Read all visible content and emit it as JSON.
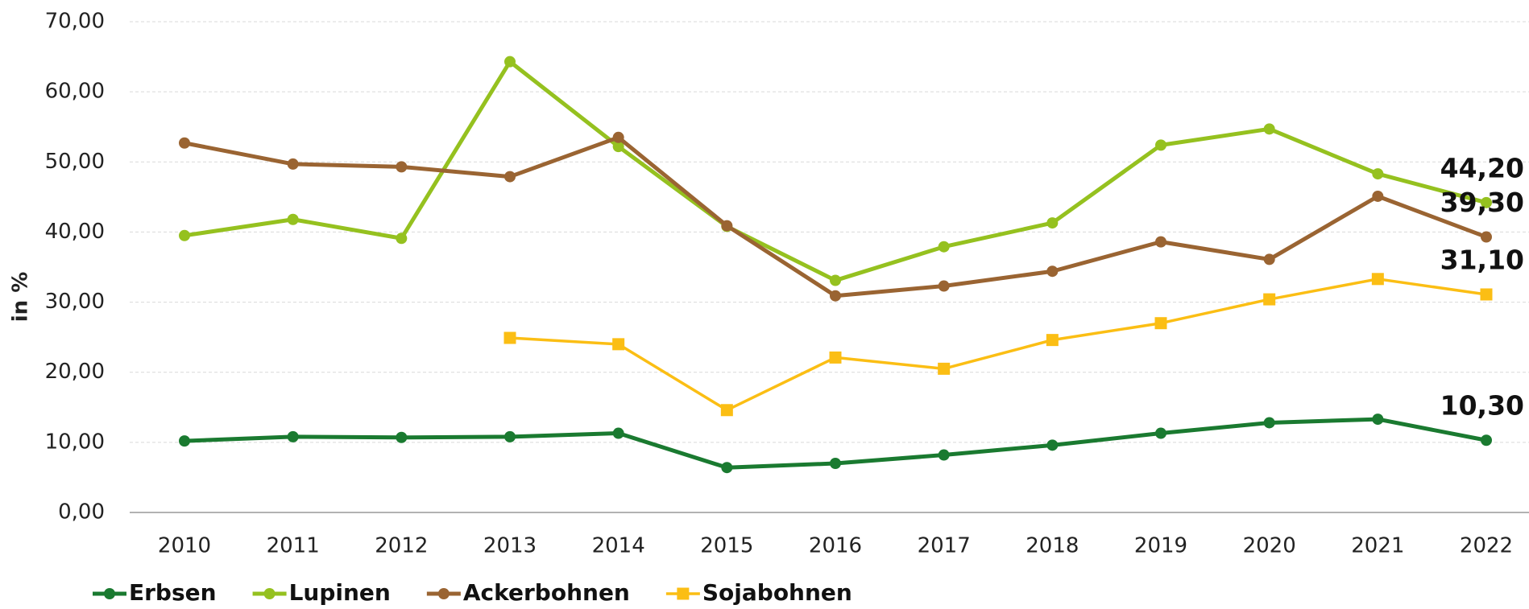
{
  "chart_data": {
    "type": "line",
    "y_label": "in %",
    "categories": [
      "2010",
      "2011",
      "2012",
      "2013",
      "2014",
      "2015",
      "2016",
      "2017",
      "2018",
      "2019",
      "2020",
      "2021",
      "2022"
    ],
    "ylim": [
      0,
      70
    ],
    "yticks": [
      {
        "value": 0,
        "label": "0,00"
      },
      {
        "value": 10,
        "label": "10,00"
      },
      {
        "value": 20,
        "label": "20,00"
      },
      {
        "value": 30,
        "label": "30,00"
      },
      {
        "value": 40,
        "label": "40,00"
      },
      {
        "value": 50,
        "label": "50,00"
      },
      {
        "value": 60,
        "label": "60,00"
      },
      {
        "value": 70,
        "label": "70,00"
      }
    ],
    "grid": true,
    "legend": "bottom-left",
    "series": [
      {
        "name": "Erbsen",
        "color": "#1a7a30",
        "marker": "circle",
        "values": [
          10.2,
          10.8,
          10.7,
          10.8,
          11.3,
          6.4,
          7.0,
          8.2,
          9.6,
          11.3,
          12.8,
          13.3,
          10.3
        ],
        "value_labels": [
          null,
          null,
          null,
          null,
          null,
          null,
          null,
          null,
          null,
          null,
          null,
          null,
          "10,30"
        ]
      },
      {
        "name": "Lupinen",
        "color": "#95c11f",
        "marker": "circle",
        "values": [
          39.5,
          41.8,
          39.1,
          64.3,
          52.2,
          40.8,
          33.1,
          37.9,
          41.3,
          52.4,
          54.7,
          48.3,
          44.2
        ],
        "value_labels": [
          null,
          null,
          null,
          null,
          null,
          null,
          null,
          null,
          null,
          null,
          null,
          null,
          "44,20"
        ]
      },
      {
        "name": "Ackerbohnen",
        "color": "#9a6432",
        "marker": "circle",
        "values": [
          52.7,
          49.7,
          49.3,
          47.9,
          53.5,
          40.9,
          30.9,
          32.3,
          34.4,
          38.6,
          36.1,
          45.1,
          39.3
        ],
        "value_labels": [
          null,
          null,
          null,
          null,
          null,
          null,
          null,
          null,
          null,
          null,
          null,
          null,
          "39,30"
        ]
      },
      {
        "name": "Sojabohnen",
        "color": "#fbbe14",
        "marker": "square",
        "values": [
          null,
          null,
          null,
          24.9,
          24.0,
          14.6,
          22.1,
          20.5,
          24.6,
          27.0,
          30.4,
          33.3,
          31.1
        ],
        "value_labels": [
          null,
          null,
          null,
          null,
          null,
          null,
          null,
          null,
          null,
          null,
          null,
          null,
          "31,10"
        ]
      }
    ]
  }
}
